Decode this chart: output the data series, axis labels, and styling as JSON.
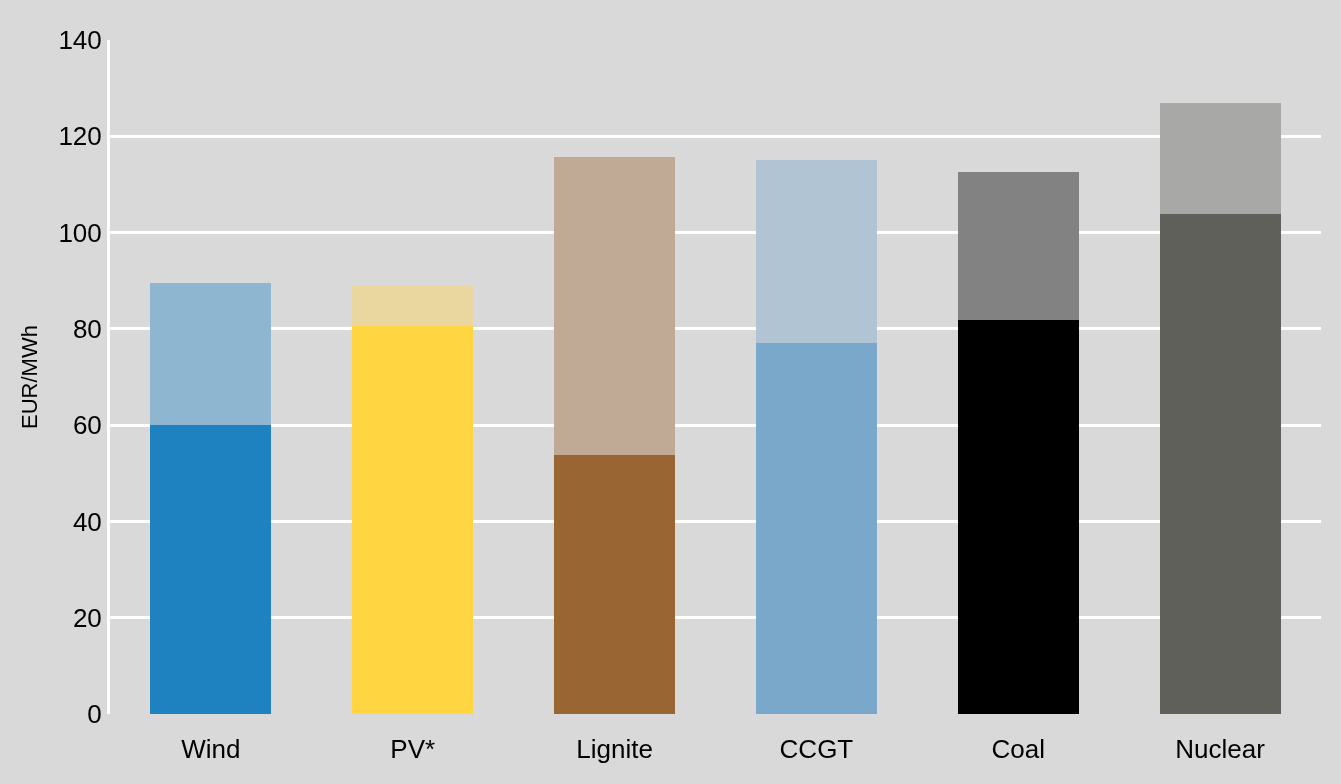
{
  "chart_data": {
    "type": "bar",
    "stacked": true,
    "ylabel": "EUR/MWh",
    "categories": [
      "Wind",
      "PV*",
      "Lignite",
      "CCGT",
      "Coal",
      "Nuclear"
    ],
    "series": [
      {
        "colors": [
          "#1f82c0",
          "#ffd541",
          "#996633",
          "#7aa8cb",
          "#000000",
          "#5f605a"
        ],
        "values": [
          60,
          80.6,
          53.9,
          77.1,
          81.9,
          103.9
        ]
      },
      {
        "colors": [
          "#8fb6d0",
          "#e9d79f",
          "#c0aa96",
          "#b0c4d3",
          "#828282",
          "#a8a8a6"
        ],
        "values": [
          29.6,
          8.4,
          61.8,
          37.9,
          30.7,
          23.0
        ]
      }
    ],
    "ylim": [
      0,
      140
    ],
    "yticks": [
      0,
      20,
      40,
      60,
      80,
      100,
      120,
      140
    ],
    "grid": "y"
  }
}
